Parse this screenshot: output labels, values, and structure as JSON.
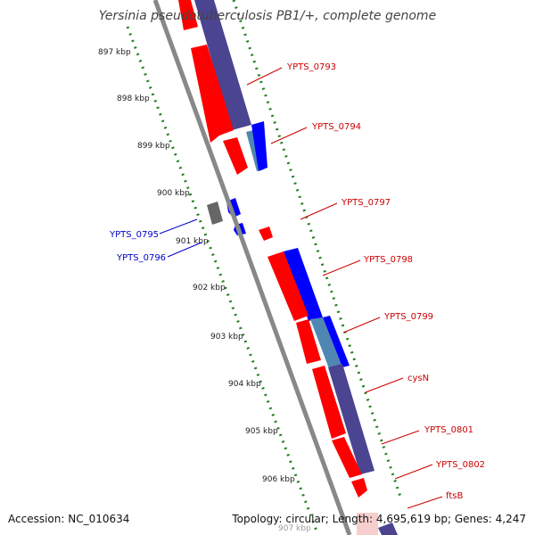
{
  "title": "Yersinia pseudotuberculosis PB1/+, complete genome",
  "footer": {
    "accession": "Accession: NC_010634",
    "topology": "Topology: circular; Length: 4,695,619 bp; Genes: 4,247"
  },
  "colors": {
    "forward_cds": "#ff0000",
    "reverse_cds": "#0000ff",
    "other_feature": "#666666",
    "forward_label": "#cc0000",
    "reverse_label": "#0000cc",
    "blast_hit_dark": "#4a4491",
    "blast_hit_light": "#4f87b2",
    "backbone": "#888888",
    "tick": "#1f7f1f"
  },
  "ticks": [
    "897 kbp",
    "898 kbp",
    "899 kbp",
    "900 kbp",
    "901 kbp",
    "902 kbp",
    "903 kbp",
    "904 kbp",
    "905 kbp",
    "906 kbp",
    "907 kbp"
  ],
  "genes": [
    {
      "name": "YPTS_0793",
      "strand": "forward"
    },
    {
      "name": "YPTS_0794",
      "strand": "forward"
    },
    {
      "name": "YPTS_0795",
      "strand": "reverse"
    },
    {
      "name": "YPTS_0796",
      "strand": "reverse"
    },
    {
      "name": "YPTS_0797",
      "strand": "forward"
    },
    {
      "name": "YPTS_0798",
      "strand": "forward"
    },
    {
      "name": "YPTS_0799",
      "strand": "forward"
    },
    {
      "name": "cysN",
      "strand": "forward"
    },
    {
      "name": "YPTS_0801",
      "strand": "forward"
    },
    {
      "name": "YPTS_0802",
      "strand": "forward"
    },
    {
      "name": "ftsB",
      "strand": "forward"
    }
  ]
}
